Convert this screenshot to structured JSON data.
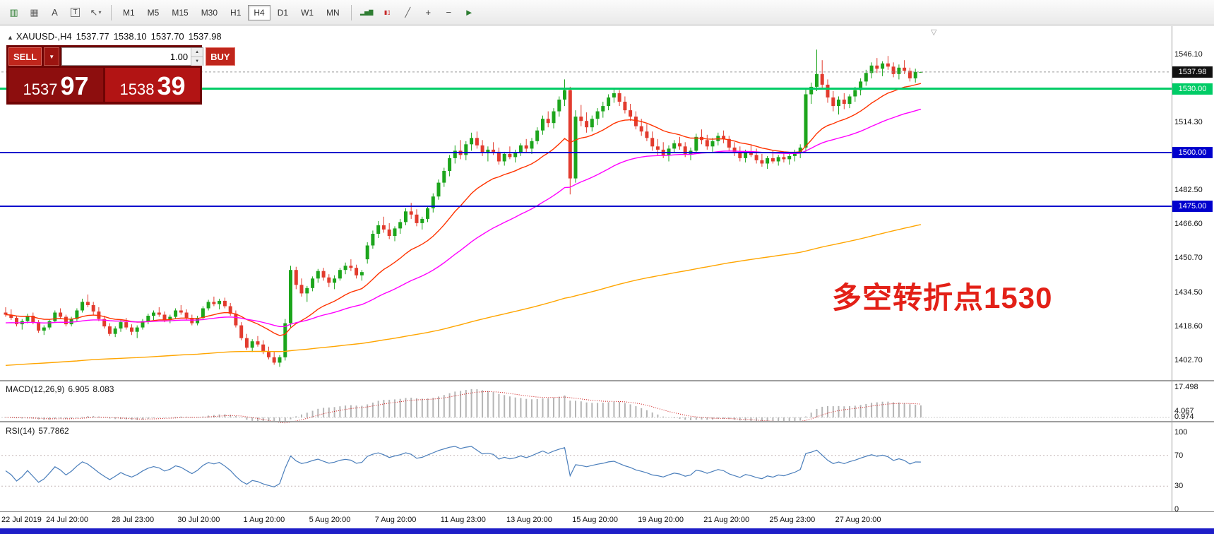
{
  "toolbar": {
    "left_icons": [
      {
        "name": "new-chart-icon",
        "glyph": "▥",
        "color": "#2e7d32"
      },
      {
        "name": "chart-grid-icon",
        "glyph": "▦",
        "color": "#666666"
      },
      {
        "name": "insert-text-icon",
        "glyph": "A",
        "color": "#444444"
      },
      {
        "name": "text-label-icon",
        "glyph": "T",
        "boxed": true
      },
      {
        "name": "cursor-tool-icon",
        "glyph": "↖",
        "color": "#555555",
        "caret": true
      }
    ],
    "timeframes": [
      {
        "label": "M1",
        "active": false
      },
      {
        "label": "M5",
        "active": false
      },
      {
        "label": "M15",
        "active": false
      },
      {
        "label": "M30",
        "active": false
      },
      {
        "label": "H1",
        "active": false
      },
      {
        "label": "H4",
        "active": true
      },
      {
        "label": "D1",
        "active": false
      },
      {
        "label": "W1",
        "active": false
      },
      {
        "label": "MN",
        "active": false
      }
    ],
    "right_icons": [
      {
        "name": "bar-chart-icon",
        "glyph": "▂▅▇",
        "color": "#2e7d32",
        "small": true
      },
      {
        "name": "candlestick-chart-icon",
        "glyph": "▮▯",
        "color": "#c62828",
        "small": true
      },
      {
        "name": "line-chart-icon",
        "glyph": "╱",
        "color": "#666666"
      },
      {
        "name": "zoom-in-icon",
        "glyph": "+",
        "color": "#444444"
      },
      {
        "name": "zoom-out-icon",
        "glyph": "−",
        "color": "#444444"
      },
      {
        "name": "auto-trading-icon",
        "glyph": "►",
        "color": "#2e7d32"
      }
    ]
  },
  "chart": {
    "title": {
      "symbol_period": "XAUUSD-,H4",
      "open": "1537.77",
      "high": "1538.10",
      "low": "1537.70",
      "close": "1537.98",
      "collapse_glyph": "▲"
    },
    "trade_panel": {
      "sell_label": "SELL",
      "buy_label": "BUY",
      "dropdown_glyph": "▼",
      "volume": "1.00",
      "sell_price_small": "1537",
      "sell_price_big": "97",
      "buy_price_small": "1538",
      "buy_price_big": "39"
    },
    "annotation": "多空转折点1530",
    "scroll_marker_glyph": "▽",
    "current_price_badge": "1537.98",
    "current_badge_color": "#111111"
  },
  "macd": {
    "label": "MACD(12,26,9)",
    "value_main": "6.905",
    "value_signal": "8.083",
    "axis_labels": [
      "17.498",
      "4.067",
      "0.974"
    ]
  },
  "rsi": {
    "label": "RSI(14)",
    "value": "57.7862",
    "axis_labels": [
      "100",
      "70",
      "30",
      "0"
    ]
  },
  "chart_data": {
    "type": "candlestick",
    "symbol": "XAUUSD-",
    "timeframe": "H4",
    "title": "XAUUSD-,H4",
    "ohlc_last": [
      1537.77,
      1538.1,
      1537.7,
      1537.98
    ],
    "up_color": "#1ca51c",
    "down_color": "#e23b2e",
    "price_ticks": [
      1546.1,
      1514.3,
      1482.5,
      1466.6,
      1450.7,
      1434.5,
      1418.6,
      1402.7
    ],
    "ylim": [
      1393.0,
      1559.5
    ],
    "grid": false,
    "horizontal_lines": [
      {
        "price": 1530.0,
        "label": "1530.00",
        "color": "#00cc66",
        "thickness": 3
      },
      {
        "price": 1500.0,
        "label": "1500.00",
        "color": "#0000cd",
        "thickness": 2
      },
      {
        "price": 1475.0,
        "label": "1475.00",
        "color": "#0000cd",
        "thickness": 2
      }
    ],
    "moving_averages": [
      {
        "name": "fast-ma",
        "period": 19,
        "seed": 1424,
        "color": "#ff3300"
      },
      {
        "name": "medium-ma",
        "period": 49,
        "seed": 1420,
        "color": "#ff00ff"
      },
      {
        "name": "slow-ma",
        "period": 249,
        "seed": 1400,
        "color": "#ffa500"
      }
    ],
    "indicators": [
      {
        "name": "MACD",
        "params": [
          12,
          26,
          9
        ],
        "current": [
          6.905,
          8.083
        ],
        "scale_top": 17.498,
        "histogram_color": "#b5b5b5",
        "signal_color": "#cc1111"
      },
      {
        "name": "RSI",
        "params": [
          14
        ],
        "current": 57.7862,
        "levels": [
          70,
          30
        ],
        "line_color": "#4a7ebb"
      }
    ],
    "bars_per_label": 12,
    "x_labels": [
      "22 Jul 2019",
      "24 Jul 20:00",
      "28 Jul 23:00",
      "30 Jul 20:00",
      "1 Aug 20:00",
      "5 Aug 20:00",
      "7 Aug 20:00",
      "11 Aug 23:00",
      "13 Aug 20:00",
      "15 Aug 20:00",
      "19 Aug 20:00",
      "21 Aug 20:00",
      "25 Aug 23:00",
      "27 Aug 20:00"
    ],
    "candles": [
      [
        1425,
        1427.5,
        1423,
        1424
      ],
      [
        1424,
        1426.5,
        1421.5,
        1422.5
      ],
      [
        1422.5,
        1423.5,
        1418.5,
        1419.5
      ],
      [
        1419.5,
        1422,
        1417,
        1421
      ],
      [
        1421,
        1424.5,
        1420,
        1423.5
      ],
      [
        1423.5,
        1425,
        1419.5,
        1420.5
      ],
      [
        1420.5,
        1421.5,
        1415.5,
        1416.5
      ],
      [
        1416.5,
        1419,
        1414.5,
        1418
      ],
      [
        1418,
        1422,
        1417,
        1421
      ],
      [
        1421,
        1426,
        1420.5,
        1425
      ],
      [
        1425,
        1427,
        1422,
        1423
      ],
      [
        1423,
        1424,
        1418.5,
        1419.5
      ],
      [
        1419.5,
        1423,
        1418.5,
        1422
      ],
      [
        1422,
        1427,
        1421,
        1426
      ],
      [
        1426,
        1431.5,
        1425,
        1430
      ],
      [
        1430,
        1433.5,
        1427.5,
        1428.5
      ],
      [
        1428.5,
        1430,
        1424,
        1425.5
      ],
      [
        1425.5,
        1427.5,
        1421,
        1422
      ],
      [
        1422,
        1423.5,
        1417.5,
        1418.5
      ],
      [
        1418.5,
        1420,
        1414,
        1415
      ],
      [
        1415,
        1418.5,
        1413.5,
        1417.5
      ],
      [
        1417.5,
        1421.5,
        1416,
        1420.5
      ],
      [
        1420.5,
        1422.5,
        1417,
        1418
      ],
      [
        1418,
        1419.5,
        1414.5,
        1416
      ],
      [
        1416,
        1419,
        1413,
        1418
      ],
      [
        1418,
        1422,
        1417,
        1421
      ],
      [
        1421,
        1424.5,
        1419.5,
        1423.5
      ],
      [
        1423.5,
        1426,
        1421.5,
        1425
      ],
      [
        1425,
        1427.5,
        1423,
        1424
      ],
      [
        1424,
        1425.5,
        1420.5,
        1421.5
      ],
      [
        1421.5,
        1424,
        1420,
        1423
      ],
      [
        1423,
        1427,
        1422,
        1426
      ],
      [
        1426,
        1428.5,
        1424,
        1425
      ],
      [
        1425,
        1426.5,
        1421.5,
        1422.5
      ],
      [
        1422.5,
        1424,
        1419,
        1420
      ],
      [
        1420,
        1423.5,
        1419,
        1422.5
      ],
      [
        1422.5,
        1428,
        1421.5,
        1427
      ],
      [
        1427,
        1431,
        1426,
        1430
      ],
      [
        1430,
        1432.5,
        1428,
        1429
      ],
      [
        1429,
        1431.5,
        1426.5,
        1430.5
      ],
      [
        1430.5,
        1432,
        1427,
        1428
      ],
      [
        1428,
        1429.5,
        1423.5,
        1424.5
      ],
      [
        1424.5,
        1426,
        1418,
        1419
      ],
      [
        1419,
        1420.5,
        1412,
        1413
      ],
      [
        1413,
        1415,
        1407.5,
        1408.5
      ],
      [
        1408.5,
        1412.5,
        1406.5,
        1411.5
      ],
      [
        1411.5,
        1414,
        1409,
        1410
      ],
      [
        1410,
        1412,
        1405.5,
        1406.5
      ],
      [
        1406.5,
        1409,
        1403,
        1404
      ],
      [
        1404,
        1406.5,
        1400.5,
        1401.5
      ],
      [
        1401.5,
        1405,
        1399.5,
        1404
      ],
      [
        1404,
        1422,
        1402.5,
        1420
      ],
      [
        1420,
        1447,
        1418,
        1445
      ],
      [
        1445,
        1446.5,
        1436,
        1438
      ],
      [
        1438,
        1441,
        1432.5,
        1434
      ],
      [
        1434,
        1437.5,
        1430,
        1436.5
      ],
      [
        1436.5,
        1442,
        1435,
        1441
      ],
      [
        1441,
        1445.5,
        1439,
        1444.5
      ],
      [
        1444.5,
        1446,
        1440,
        1441.5
      ],
      [
        1441.5,
        1443,
        1437,
        1439
      ],
      [
        1439,
        1442.5,
        1436,
        1441
      ],
      [
        1441,
        1446,
        1440,
        1445
      ],
      [
        1445,
        1448.5,
        1443,
        1447
      ],
      [
        1447,
        1450,
        1444.5,
        1446
      ],
      [
        1446,
        1447.5,
        1441,
        1442.5
      ],
      [
        1442.5,
        1445,
        1440,
        1444
      ],
      [
        1450,
        1458,
        1448,
        1456.5
      ],
      [
        1456.5,
        1463.5,
        1455,
        1462
      ],
      [
        1462,
        1468,
        1460,
        1466
      ],
      [
        1466,
        1470,
        1462.5,
        1464
      ],
      [
        1464,
        1467,
        1459.5,
        1461
      ],
      [
        1461,
        1465.5,
        1458.5,
        1464.5
      ],
      [
        1464.5,
        1469,
        1462,
        1467.5
      ],
      [
        1467.5,
        1474,
        1466,
        1472.5
      ],
      [
        1472.5,
        1476.5,
        1469,
        1471
      ],
      [
        1471,
        1473.5,
        1465.5,
        1467
      ],
      [
        1467,
        1470,
        1464,
        1469
      ],
      [
        1469,
        1475,
        1467.5,
        1474
      ],
      [
        1474,
        1481,
        1472,
        1479.5
      ],
      [
        1479.5,
        1487.5,
        1478,
        1486
      ],
      [
        1486,
        1493,
        1484,
        1491.5
      ],
      [
        1491.5,
        1499,
        1489,
        1497.5
      ],
      [
        1497.5,
        1503.5,
        1495,
        1501
      ],
      [
        1501,
        1506,
        1497,
        1499
      ],
      [
        1499,
        1505.5,
        1496.5,
        1504
      ],
      [
        1504,
        1509.5,
        1501,
        1507
      ],
      [
        1507,
        1510,
        1502,
        1503.5
      ],
      [
        1503.5,
        1506,
        1498.5,
        1500
      ],
      [
        1500,
        1503,
        1496,
        1501.5
      ],
      [
        1501.5,
        1505,
        1499,
        1500.5
      ],
      [
        1500.5,
        1502.5,
        1494.5,
        1496
      ],
      [
        1496,
        1500.5,
        1494,
        1499.5
      ],
      [
        1499.5,
        1503,
        1497,
        1498
      ],
      [
        1498,
        1501.5,
        1495.5,
        1500
      ],
      [
        1500,
        1504.5,
        1498.5,
        1503.5
      ],
      [
        1503.5,
        1506.5,
        1500,
        1502
      ],
      [
        1502,
        1507,
        1499.5,
        1505.5
      ],
      [
        1505.5,
        1512,
        1504,
        1510.5
      ],
      [
        1510.5,
        1517.5,
        1508.5,
        1516
      ],
      [
        1516,
        1519.5,
        1512,
        1514
      ],
      [
        1514,
        1521,
        1511.5,
        1519.5
      ],
      [
        1519.5,
        1526.5,
        1517,
        1525
      ],
      [
        1525,
        1534.5,
        1522,
        1529.5
      ],
      [
        1529.5,
        1531,
        1480.5,
        1488
      ],
      [
        1488,
        1520,
        1486,
        1517
      ],
      [
        1517,
        1522.5,
        1512.5,
        1515
      ],
      [
        1515,
        1519,
        1509.5,
        1512
      ],
      [
        1512,
        1517.5,
        1510,
        1516
      ],
      [
        1516,
        1521,
        1513,
        1519.5
      ],
      [
        1519.5,
        1524,
        1516.5,
        1522
      ],
      [
        1522,
        1527.5,
        1520,
        1526
      ],
      [
        1526,
        1530.5,
        1523.5,
        1528
      ],
      [
        1528,
        1529.5,
        1522,
        1524
      ],
      [
        1524,
        1526.5,
        1518.5,
        1520
      ],
      [
        1520,
        1523,
        1515,
        1517
      ],
      [
        1517,
        1519.5,
        1511,
        1512.5
      ],
      [
        1512.5,
        1516,
        1508,
        1510
      ],
      [
        1510,
        1513.5,
        1505.5,
        1507
      ],
      [
        1507,
        1510,
        1501,
        1503
      ],
      [
        1503,
        1506.5,
        1499,
        1501.5
      ],
      [
        1501.5,
        1505,
        1497.5,
        1499
      ],
      [
        1499,
        1503.5,
        1496,
        1502
      ],
      [
        1502,
        1506,
        1500,
        1504.5
      ],
      [
        1504.5,
        1507.5,
        1501.5,
        1503
      ],
      [
        1503,
        1505,
        1498,
        1499.5
      ],
      [
        1499.5,
        1502.5,
        1496.5,
        1501
      ],
      [
        1501,
        1509,
        1499.5,
        1507.5
      ],
      [
        1507.5,
        1511,
        1504,
        1506
      ],
      [
        1506,
        1508.5,
        1501.5,
        1503
      ],
      [
        1503,
        1507,
        1500.5,
        1505.5
      ],
      [
        1505.5,
        1509.5,
        1503.5,
        1508
      ],
      [
        1508,
        1510.5,
        1504.5,
        1506.5
      ],
      [
        1506.5,
        1508,
        1501,
        1502.5
      ],
      [
        1502.5,
        1505,
        1498.5,
        1500
      ],
      [
        1500,
        1503,
        1496,
        1497.5
      ],
      [
        1497.5,
        1501.5,
        1495.5,
        1500.5
      ],
      [
        1500.5,
        1504,
        1498,
        1499
      ],
      [
        1499,
        1502,
        1495,
        1496.5
      ],
      [
        1496.5,
        1499.5,
        1493.5,
        1495
      ],
      [
        1495,
        1498.5,
        1492.5,
        1497.5
      ],
      [
        1497.5,
        1501,
        1495,
        1496
      ],
      [
        1496,
        1499,
        1494,
        1498
      ],
      [
        1498,
        1500.5,
        1495.5,
        1497
      ],
      [
        1497,
        1499.5,
        1494.5,
        1498.5
      ],
      [
        1498.5,
        1501.5,
        1496,
        1500
      ],
      [
        1500,
        1504,
        1497.5,
        1502.5
      ],
      [
        1502.5,
        1530,
        1500.5,
        1527.5
      ],
      [
        1527.5,
        1533,
        1523,
        1531
      ],
      [
        1531,
        1548.5,
        1529,
        1537
      ],
      [
        1537,
        1543.5,
        1530,
        1532
      ],
      [
        1532,
        1534.5,
        1523.5,
        1526
      ],
      [
        1526,
        1529,
        1519.5,
        1522
      ],
      [
        1522,
        1526.5,
        1518,
        1525
      ],
      [
        1525,
        1528,
        1520.5,
        1523
      ],
      [
        1523,
        1527.5,
        1521,
        1526.5
      ],
      [
        1526.5,
        1531,
        1524,
        1529.5
      ],
      [
        1529.5,
        1535,
        1527,
        1533.5
      ],
      [
        1533.5,
        1539,
        1531.5,
        1537.5
      ],
      [
        1537.5,
        1542.5,
        1535,
        1541
      ],
      [
        1541,
        1544.5,
        1537.5,
        1539.5
      ],
      [
        1539.5,
        1543,
        1536,
        1542
      ],
      [
        1542,
        1545.5,
        1539,
        1540.5
      ],
      [
        1540.5,
        1542.5,
        1535.5,
        1537
      ],
      [
        1537,
        1541.5,
        1534.5,
        1540
      ],
      [
        1540,
        1543.5,
        1537,
        1538.5
      ],
      [
        1538.5,
        1540,
        1533.5,
        1535
      ],
      [
        1535,
        1539.5,
        1533,
        1538
      ],
      [
        1537.77,
        1538.1,
        1537.7,
        1537.98
      ]
    ]
  }
}
